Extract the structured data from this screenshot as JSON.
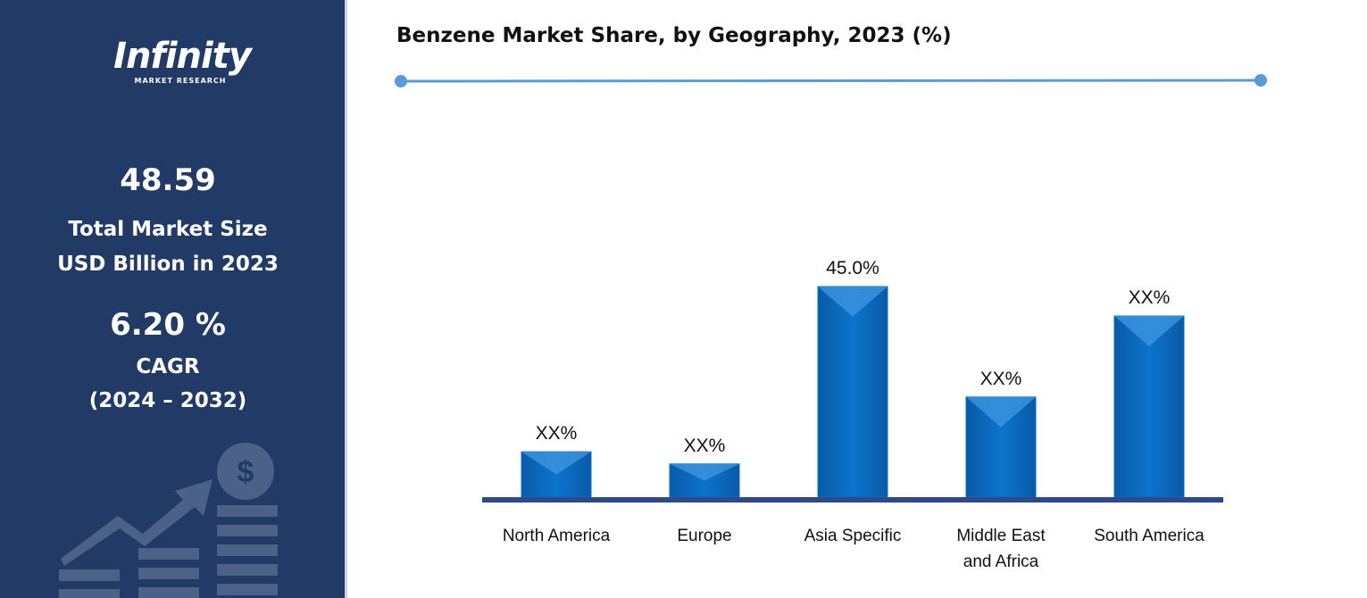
{
  "sidebar": {
    "logo": "Infinity",
    "logo_sub": "MARKET RESEARCH",
    "market_size": "48.59",
    "market_size_label_1": "Total Market Size",
    "market_size_label_2": "USD Billion in 2023",
    "cagr": "6.20 %",
    "cagr_label": "CAGR",
    "cagr_period": "(2024 – 2032)"
  },
  "chart_data": {
    "type": "bar",
    "title": "Benzene Market Share, by Geography, 2023 (%)",
    "categories": [
      "North America",
      "Europe",
      "Asia Specific",
      "Middle East and Africa",
      "South America"
    ],
    "values": [
      9.7,
      7.1,
      45.0,
      21.4,
      38.7
    ],
    "value_labels": [
      "XX%",
      "XX%",
      "45.0%",
      "XX%",
      "XX%"
    ],
    "color": "#0b6fc4"
  }
}
